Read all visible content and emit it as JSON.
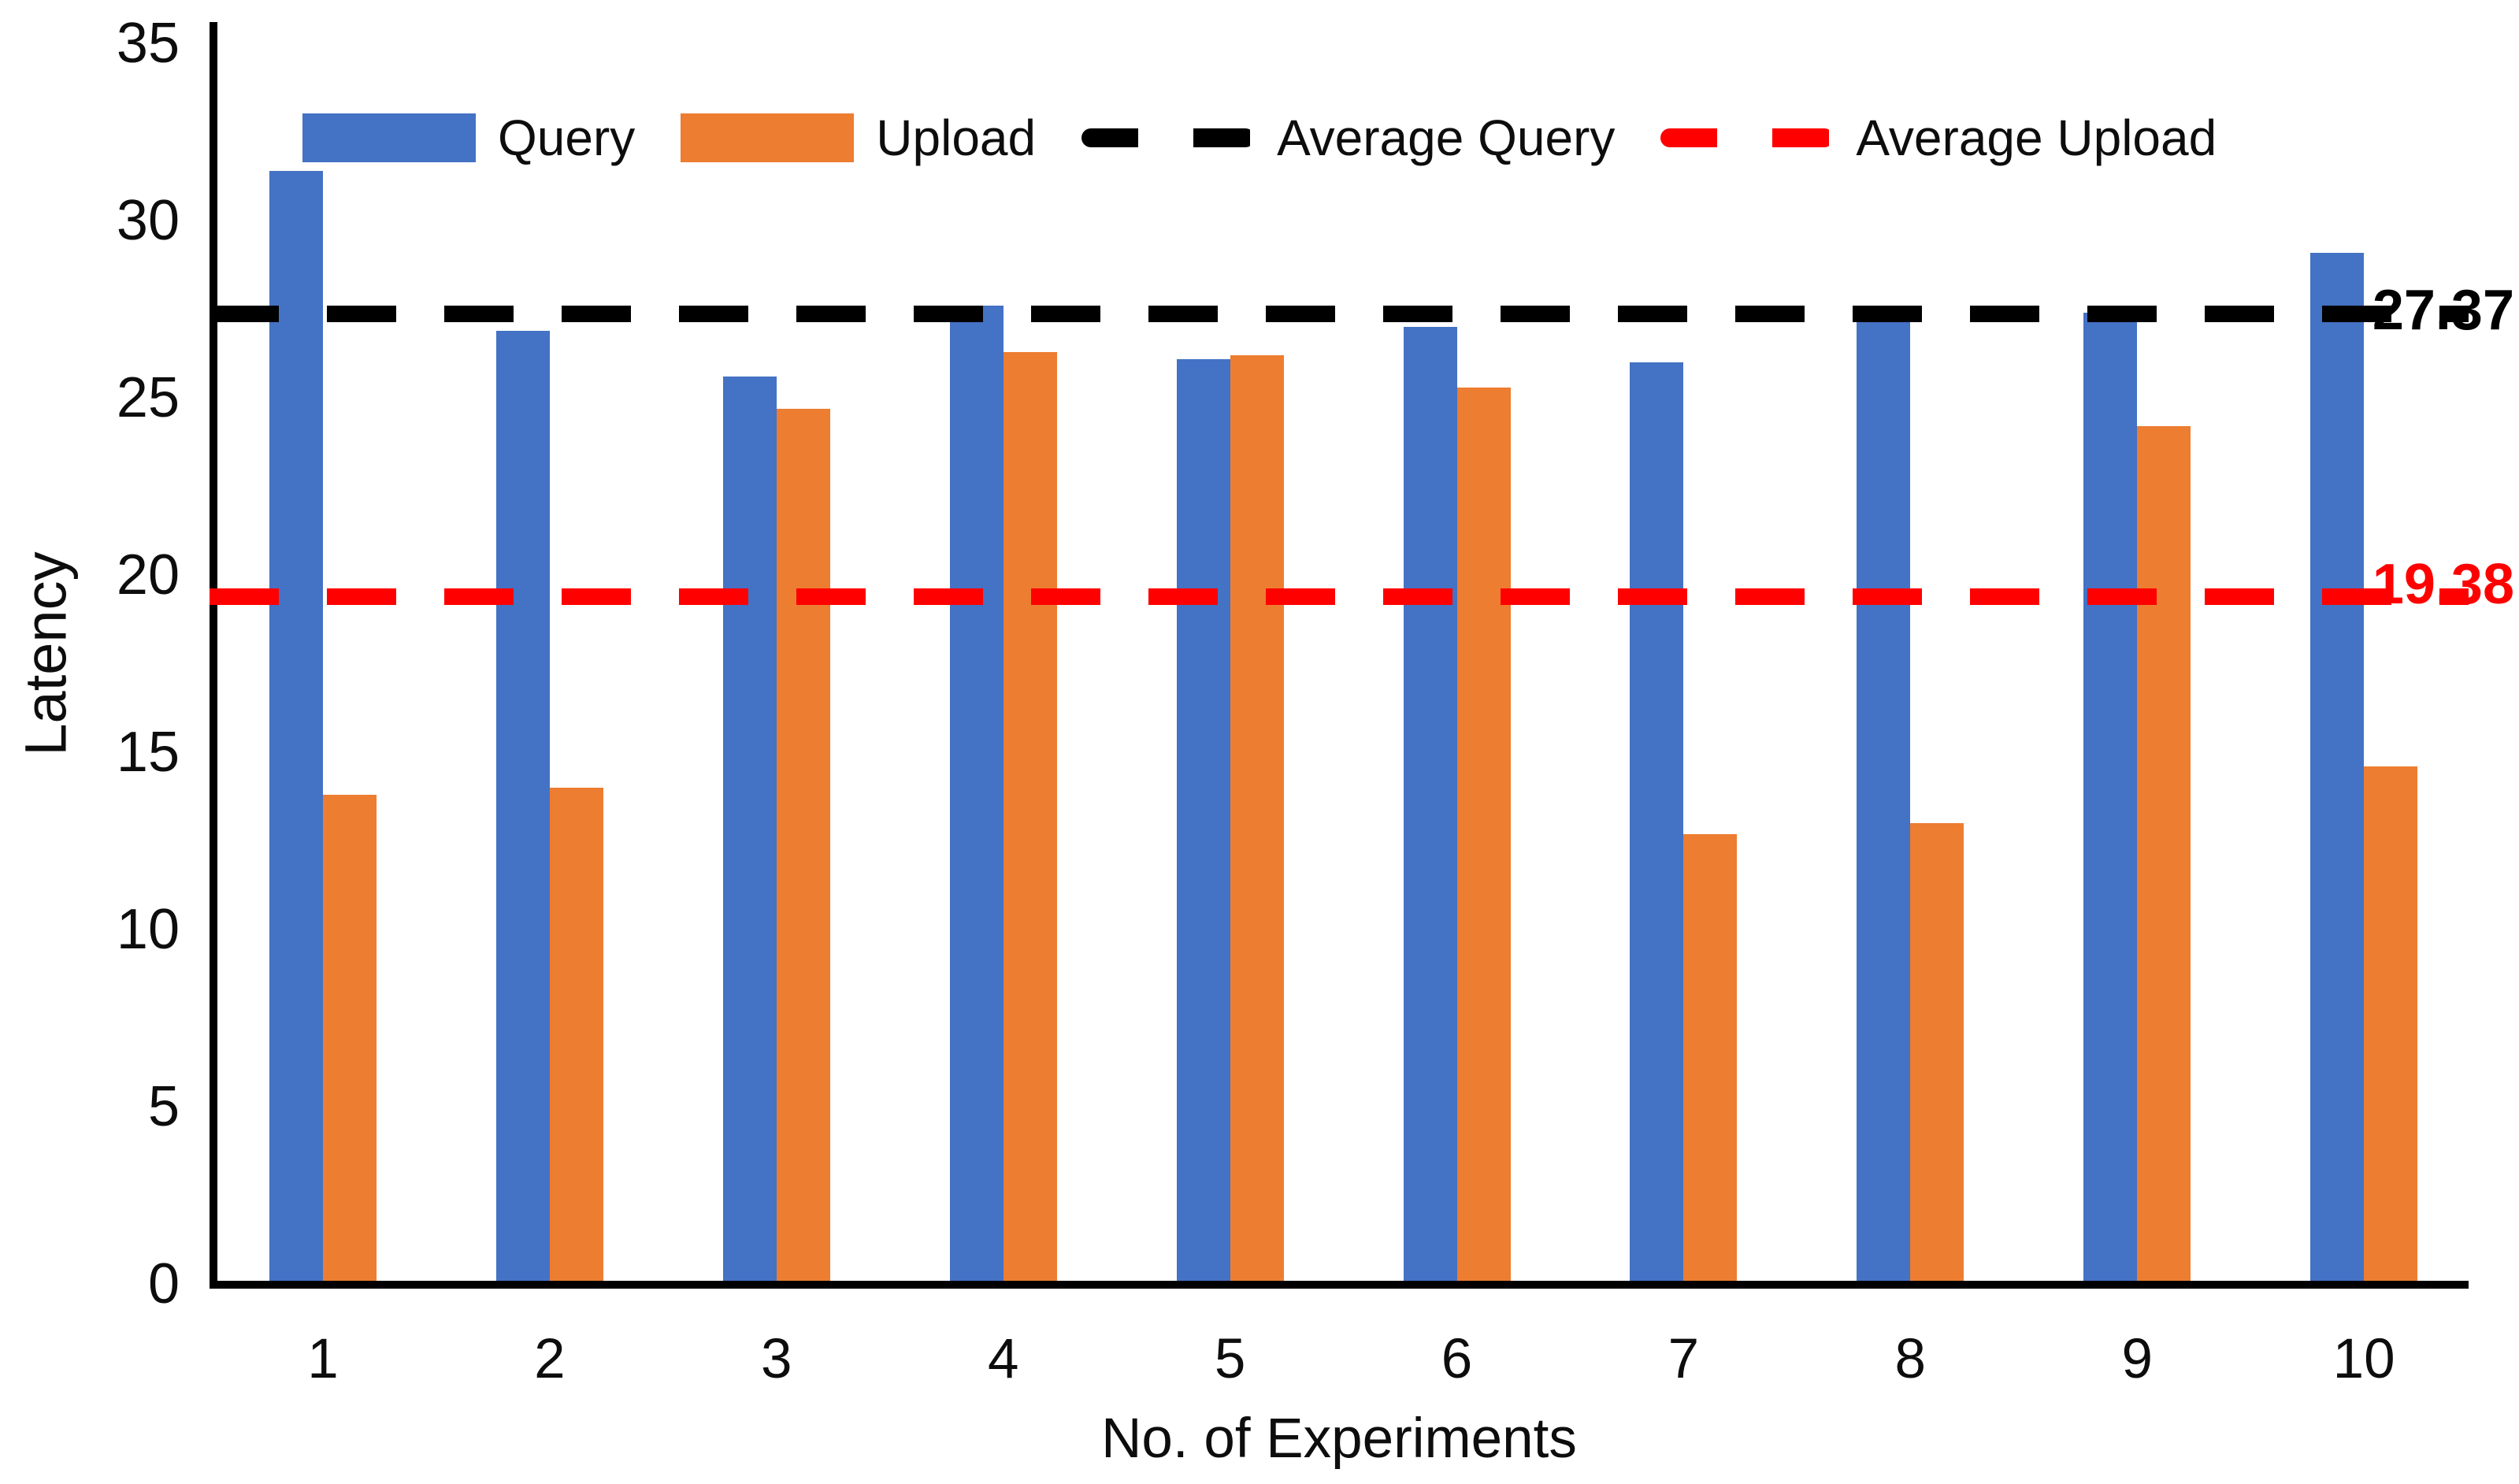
{
  "chart_data": {
    "type": "bar",
    "title": "",
    "xlabel": "No. of Experiments",
    "ylabel": "Latency",
    "categories": [
      "1",
      "2",
      "3",
      "4",
      "5",
      "6",
      "7",
      "8",
      "9",
      "10"
    ],
    "series": [
      {
        "name": "Query",
        "color": "#4472C4",
        "values": [
          31.3,
          26.8,
          25.5,
          27.5,
          26.0,
          26.9,
          25.9,
          27.5,
          27.3,
          29.0
        ]
      },
      {
        "name": "Upload",
        "color": "#ED7D31",
        "values": [
          13.7,
          13.9,
          24.6,
          26.2,
          26.1,
          25.2,
          12.6,
          12.9,
          24.1,
          14.5
        ]
      }
    ],
    "reference_lines": [
      {
        "name": "Average Query",
        "value": 27.37,
        "label": "27.37",
        "color": "#000000"
      },
      {
        "name": "Average Upload",
        "value": 19.38,
        "label": "19.38",
        "color": "#FF0000"
      }
    ],
    "legend": [
      {
        "label": "Query",
        "swatch": "bar",
        "color": "#4472C4"
      },
      {
        "label": "Upload",
        "swatch": "bar",
        "color": "#ED7D31"
      },
      {
        "label": "Average Query",
        "swatch": "dash",
        "color": "#000000"
      },
      {
        "label": "Average Upload",
        "swatch": "dash",
        "color": "#FF0000"
      }
    ],
    "ylim": [
      0,
      35
    ],
    "yticks": [
      0,
      5,
      10,
      15,
      20,
      25,
      30,
      35
    ],
    "grid": false,
    "legend_position": "top",
    "axis_color": "#000000"
  }
}
